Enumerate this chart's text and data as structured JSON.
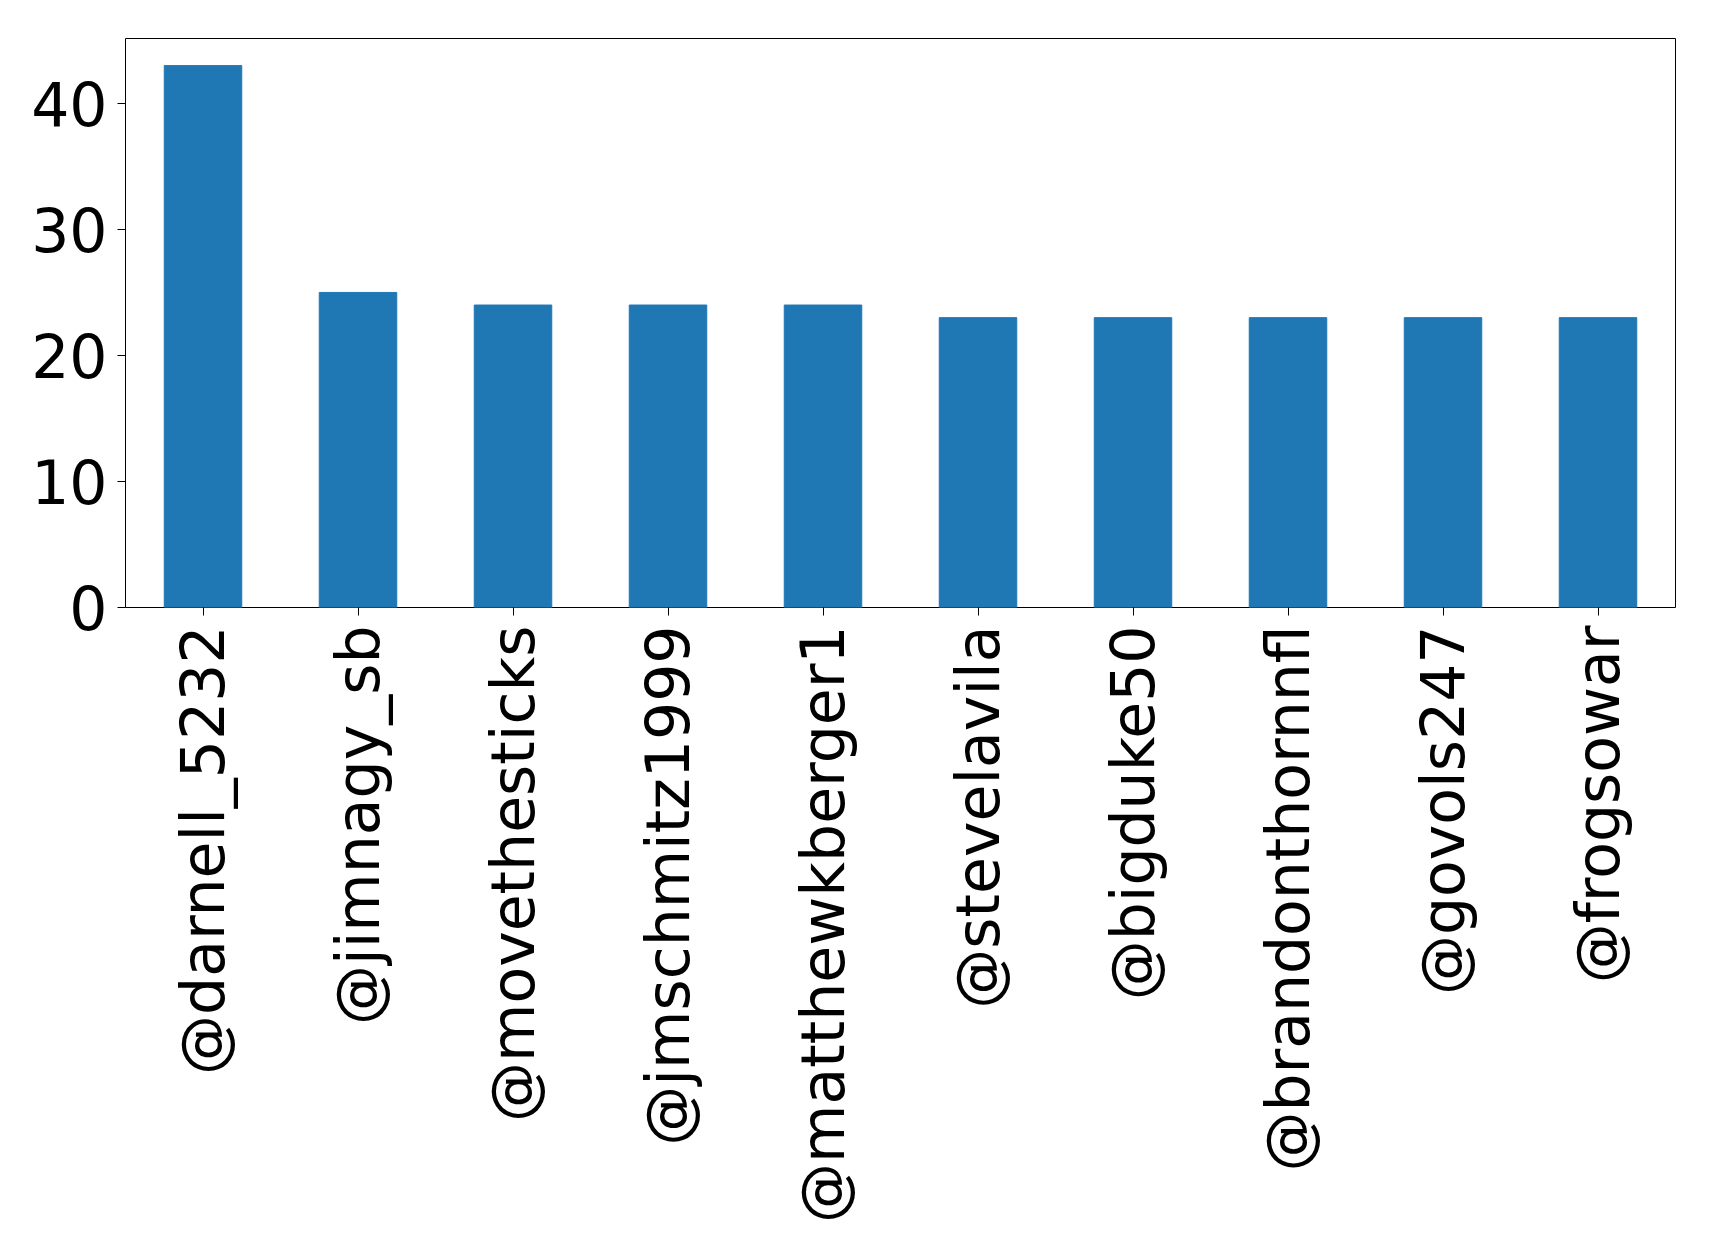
{
  "chart_data": {
    "type": "bar",
    "categories": [
      "@darnell_5232",
      "@jimnagy_sb",
      "@movethesticks",
      "@jmschmitz1999",
      "@matthewkberger1",
      "@stevelavila",
      "@bigduke50",
      "@brandonthornnfl",
      "@govols247",
      "@frogsowar"
    ],
    "values": [
      43,
      25,
      24,
      24,
      24,
      23,
      23,
      23,
      23,
      23
    ],
    "color": "#1f77b4",
    "ylim": [
      0,
      45.15
    ],
    "yticks": [
      0,
      10,
      20,
      30,
      40
    ],
    "grid": false
  }
}
